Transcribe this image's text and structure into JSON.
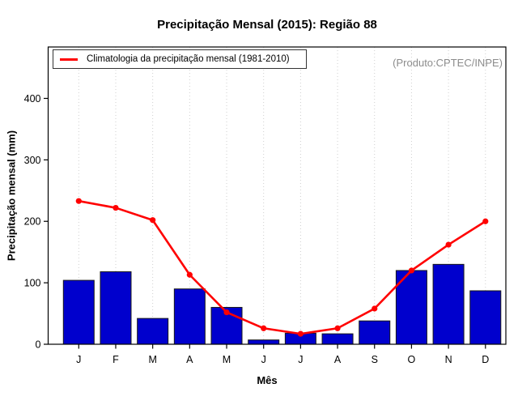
{
  "title": "Precipitação Mensal (2015): Região 88",
  "credit": "(Produto:CPTEC/INPE)",
  "legend": {
    "label": "Climatologia da precipitação mensal (1981-2010)"
  },
  "chart_data": {
    "type": "bar",
    "title": "Precipitação Mensal (2015): Região 88",
    "xlabel": "Mês",
    "ylabel": "Precipitação mensal (mm)",
    "categories": [
      "J",
      "F",
      "M",
      "A",
      "M",
      "J",
      "J",
      "A",
      "S",
      "O",
      "N",
      "D"
    ],
    "yticks": [
      0,
      100,
      200,
      300,
      400
    ],
    "ylim": [
      0,
      483
    ],
    "grid": "vertical-dotted",
    "legend_position": "topleft",
    "annotation": "(Produto:CPTEC/INPE)",
    "series": [
      {
        "name": "Precipitação mensal 2015",
        "type": "bar",
        "color": "#0000CD",
        "values": [
          104,
          118,
          42,
          90,
          60,
          7,
          18,
          17,
          38,
          120,
          130,
          87
        ]
      },
      {
        "name": "Climatologia da precipitação mensal (1981-2010)",
        "type": "line",
        "color": "#FF0000",
        "values": [
          233,
          222,
          202,
          113,
          52,
          26,
          17,
          26,
          58,
          120,
          162,
          200
        ]
      }
    ],
    "colors": {
      "bar_fill": "#0000CD",
      "bar_border": "#1a1a1a",
      "line": "#FF0000",
      "grid": "#cfcfcf",
      "credit_text": "#8c8c8c"
    }
  }
}
